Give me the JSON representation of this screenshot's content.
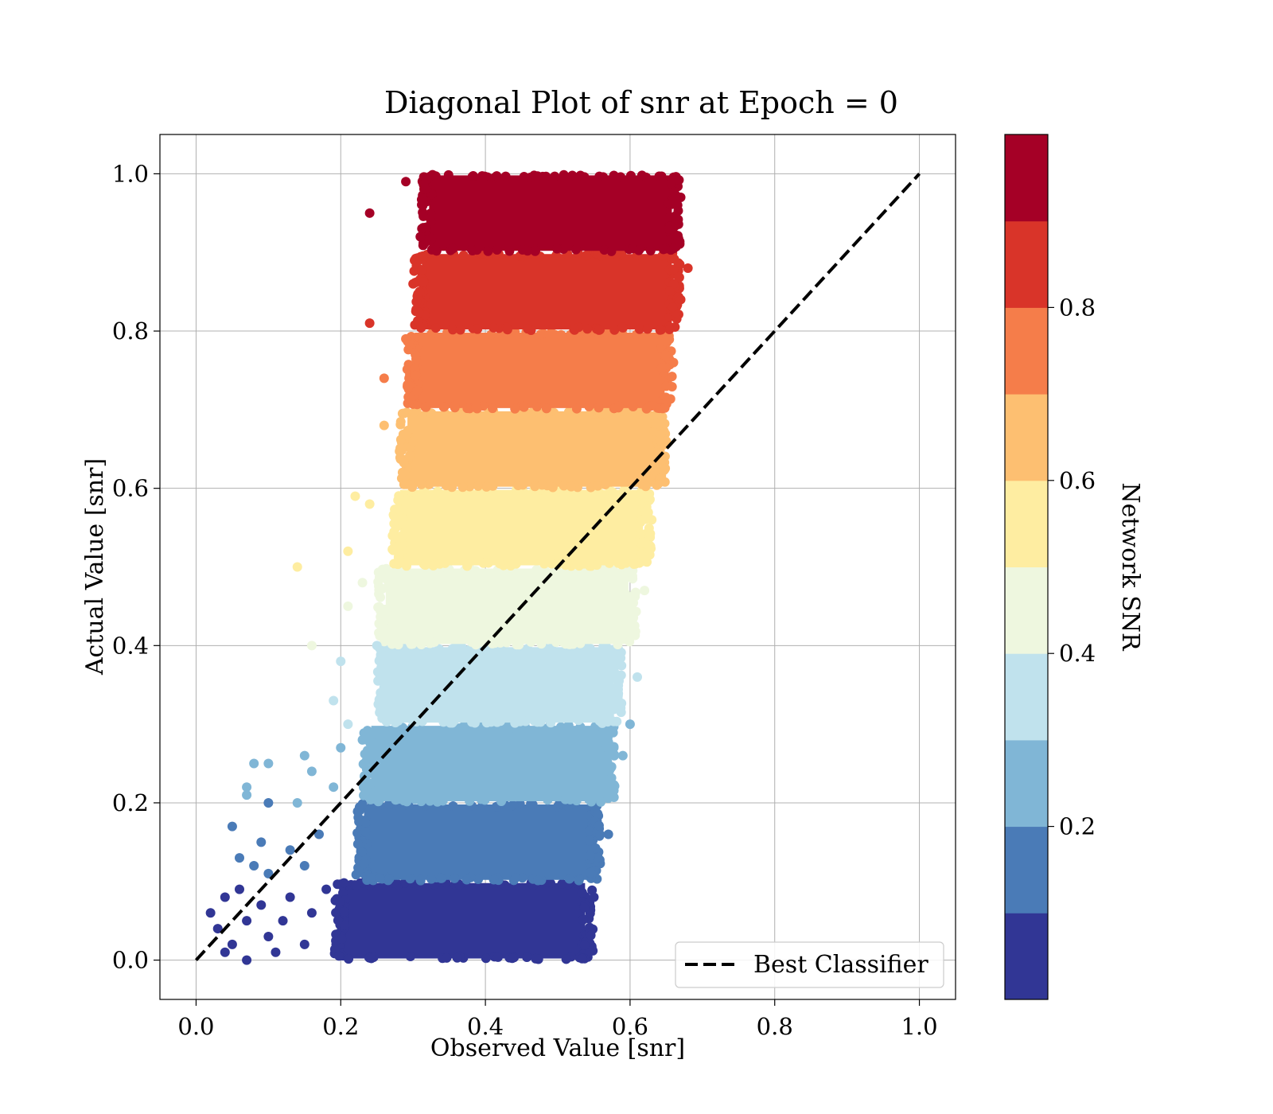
{
  "chart_data": {
    "type": "scatter",
    "title": "Diagonal Plot of snr at Epoch = 0",
    "xlabel": "Observed Value [snr]",
    "ylabel": "Actual Value [snr]",
    "xlim": [
      -0.05,
      1.05
    ],
    "ylim": [
      -0.05,
      1.05
    ],
    "x_ticks": [
      0.0,
      0.2,
      0.4,
      0.6,
      0.8,
      1.0
    ],
    "y_ticks": [
      0.0,
      0.2,
      0.4,
      0.6,
      0.8,
      1.0
    ],
    "x_tick_labels": [
      "0.0",
      "0.2",
      "0.4",
      "0.6",
      "0.8",
      "1.0"
    ],
    "y_tick_labels": [
      "0.0",
      "0.2",
      "0.4",
      "0.6",
      "0.8",
      "1.0"
    ],
    "grid": true,
    "legend": {
      "placement": "lower-right",
      "entries": [
        "Best Classifier"
      ]
    },
    "reference_line": {
      "name": "Best Classifier",
      "style": "dashed",
      "color": "#000000",
      "x": [
        0.0,
        1.0
      ],
      "y": [
        0.0,
        1.0
      ]
    },
    "bands": [
      {
        "y_range": [
          0.0,
          0.1
        ],
        "x_range": [
          0.2,
          0.54
        ],
        "color": "#313695"
      },
      {
        "y_range": [
          0.1,
          0.2
        ],
        "x_range": [
          0.23,
          0.55
        ],
        "color": "#4a7bb7"
      },
      {
        "y_range": [
          0.2,
          0.3
        ],
        "x_range": [
          0.24,
          0.57
        ],
        "color": "#80b6d6"
      },
      {
        "y_range": [
          0.3,
          0.4
        ],
        "x_range": [
          0.26,
          0.58
        ],
        "color": "#c0e2ed"
      },
      {
        "y_range": [
          0.4,
          0.5
        ],
        "x_range": [
          0.26,
          0.6
        ],
        "color": "#eef7df"
      },
      {
        "y_range": [
          0.5,
          0.6
        ],
        "x_range": [
          0.28,
          0.62
        ],
        "color": "#feeda1"
      },
      {
        "y_range": [
          0.6,
          0.7
        ],
        "x_range": [
          0.29,
          0.64
        ],
        "color": "#fdbf71"
      },
      {
        "y_range": [
          0.7,
          0.8
        ],
        "x_range": [
          0.3,
          0.65
        ],
        "color": "#f57d4a"
      },
      {
        "y_range": [
          0.8,
          0.9
        ],
        "x_range": [
          0.31,
          0.66
        ],
        "color": "#d93429"
      },
      {
        "y_range": [
          0.9,
          1.0
        ],
        "x_range": [
          0.32,
          0.66
        ],
        "color": "#a50026"
      }
    ],
    "outlier_points": [
      {
        "x": 0.24,
        "y": 0.95,
        "c": "#a50026"
      },
      {
        "x": 0.29,
        "y": 0.99,
        "c": "#a50026"
      },
      {
        "x": 0.24,
        "y": 0.81,
        "c": "#d93429"
      },
      {
        "x": 0.68,
        "y": 0.88,
        "c": "#d93429"
      },
      {
        "x": 0.26,
        "y": 0.74,
        "c": "#f57d4a"
      },
      {
        "x": 0.26,
        "y": 0.68,
        "c": "#fdbf71"
      },
      {
        "x": 0.22,
        "y": 0.59,
        "c": "#feeda1"
      },
      {
        "x": 0.24,
        "y": 0.58,
        "c": "#feeda1"
      },
      {
        "x": 0.21,
        "y": 0.52,
        "c": "#feeda1"
      },
      {
        "x": 0.14,
        "y": 0.5,
        "c": "#feeda1"
      },
      {
        "x": 0.23,
        "y": 0.48,
        "c": "#eef7df"
      },
      {
        "x": 0.21,
        "y": 0.45,
        "c": "#eef7df"
      },
      {
        "x": 0.16,
        "y": 0.4,
        "c": "#eef7df"
      },
      {
        "x": 0.2,
        "y": 0.38,
        "c": "#c0e2ed"
      },
      {
        "x": 0.19,
        "y": 0.33,
        "c": "#c0e2ed"
      },
      {
        "x": 0.21,
        "y": 0.3,
        "c": "#c0e2ed"
      },
      {
        "x": 0.2,
        "y": 0.27,
        "c": "#80b6d6"
      },
      {
        "x": 0.15,
        "y": 0.26,
        "c": "#80b6d6"
      },
      {
        "x": 0.08,
        "y": 0.25,
        "c": "#80b6d6"
      },
      {
        "x": 0.1,
        "y": 0.25,
        "c": "#80b6d6"
      },
      {
        "x": 0.07,
        "y": 0.22,
        "c": "#80b6d6"
      },
      {
        "x": 0.07,
        "y": 0.21,
        "c": "#80b6d6"
      },
      {
        "x": 0.16,
        "y": 0.24,
        "c": "#80b6d6"
      },
      {
        "x": 0.19,
        "y": 0.22,
        "c": "#80b6d6"
      },
      {
        "x": 0.14,
        "y": 0.2,
        "c": "#80b6d6"
      },
      {
        "x": 0.1,
        "y": 0.2,
        "c": "#4a7bb7"
      },
      {
        "x": 0.05,
        "y": 0.17,
        "c": "#4a7bb7"
      },
      {
        "x": 0.09,
        "y": 0.15,
        "c": "#4a7bb7"
      },
      {
        "x": 0.13,
        "y": 0.14,
        "c": "#4a7bb7"
      },
      {
        "x": 0.06,
        "y": 0.13,
        "c": "#4a7bb7"
      },
      {
        "x": 0.08,
        "y": 0.12,
        "c": "#4a7bb7"
      },
      {
        "x": 0.1,
        "y": 0.11,
        "c": "#4a7bb7"
      },
      {
        "x": 0.17,
        "y": 0.16,
        "c": "#4a7bb7"
      },
      {
        "x": 0.15,
        "y": 0.12,
        "c": "#4a7bb7"
      },
      {
        "x": 0.02,
        "y": 0.06,
        "c": "#313695"
      },
      {
        "x": 0.04,
        "y": 0.08,
        "c": "#313695"
      },
      {
        "x": 0.03,
        "y": 0.04,
        "c": "#313695"
      },
      {
        "x": 0.05,
        "y": 0.02,
        "c": "#313695"
      },
      {
        "x": 0.06,
        "y": 0.09,
        "c": "#313695"
      },
      {
        "x": 0.07,
        "y": 0.05,
        "c": "#313695"
      },
      {
        "x": 0.09,
        "y": 0.07,
        "c": "#313695"
      },
      {
        "x": 0.1,
        "y": 0.03,
        "c": "#313695"
      },
      {
        "x": 0.12,
        "y": 0.05,
        "c": "#313695"
      },
      {
        "x": 0.13,
        "y": 0.08,
        "c": "#313695"
      },
      {
        "x": 0.15,
        "y": 0.02,
        "c": "#313695"
      },
      {
        "x": 0.04,
        "y": 0.01,
        "c": "#313695"
      },
      {
        "x": 0.07,
        "y": 0.0,
        "c": "#313695"
      },
      {
        "x": 0.11,
        "y": 0.01,
        "c": "#313695"
      },
      {
        "x": 0.16,
        "y": 0.06,
        "c": "#313695"
      },
      {
        "x": 0.18,
        "y": 0.09,
        "c": "#313695"
      },
      {
        "x": 0.6,
        "y": 0.3,
        "c": "#80b6d6"
      },
      {
        "x": 0.59,
        "y": 0.26,
        "c": "#80b6d6"
      },
      {
        "x": 0.57,
        "y": 0.16,
        "c": "#4a7bb7"
      },
      {
        "x": 0.55,
        "y": 0.08,
        "c": "#313695"
      },
      {
        "x": 0.61,
        "y": 0.36,
        "c": "#c0e2ed"
      },
      {
        "x": 0.62,
        "y": 0.47,
        "c": "#eef7df"
      },
      {
        "x": 0.63,
        "y": 0.56,
        "c": "#feeda1"
      },
      {
        "x": 0.65,
        "y": 0.66,
        "c": "#fdbf71"
      },
      {
        "x": 0.66,
        "y": 0.76,
        "c": "#f57d4a"
      },
      {
        "x": 0.67,
        "y": 0.84,
        "c": "#d93429"
      },
      {
        "x": 0.67,
        "y": 0.97,
        "c": "#a50026"
      },
      {
        "x": 0.27,
        "y": 0.33,
        "c": "#c0e2ed"
      },
      {
        "x": 0.25,
        "y": 0.4,
        "c": "#c0e2ed"
      },
      {
        "x": 0.23,
        "y": 0.28,
        "c": "#80b6d6"
      },
      {
        "x": 0.28,
        "y": 0.56,
        "c": "#feeda1"
      },
      {
        "x": 0.3,
        "y": 0.66,
        "c": "#fdbf71"
      },
      {
        "x": 0.29,
        "y": 0.79,
        "c": "#f57d4a"
      },
      {
        "x": 0.3,
        "y": 0.86,
        "c": "#d93429"
      },
      {
        "x": 0.31,
        "y": 0.92,
        "c": "#a50026"
      }
    ],
    "colorbar": {
      "label": "Network SNR",
      "range": [
        0.0,
        1.0
      ],
      "ticks": [
        0.2,
        0.4,
        0.6,
        0.8
      ],
      "tick_labels": [
        "0.2",
        "0.4",
        "0.6",
        "0.8"
      ],
      "colors": [
        "#313695",
        "#4a7bb7",
        "#80b6d6",
        "#c0e2ed",
        "#eef7df",
        "#feeda1",
        "#fdbf71",
        "#f57d4a",
        "#d93429",
        "#a50026"
      ]
    }
  }
}
